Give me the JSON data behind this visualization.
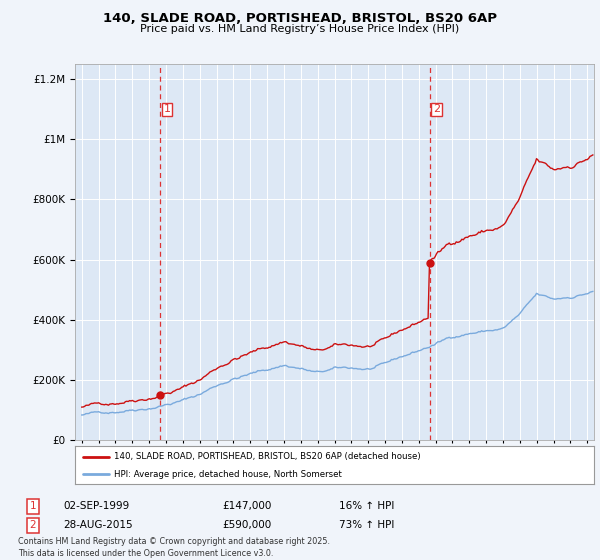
{
  "title_line1": "140, SLADE ROAD, PORTISHEAD, BRISTOL, BS20 6AP",
  "title_line2": "Price paid vs. HM Land Registry’s House Price Index (HPI)",
  "legend_line1": "140, SLADE ROAD, PORTISHEAD, BRISTOL, BS20 6AP (detached house)",
  "legend_line2": "HPI: Average price, detached house, North Somerset",
  "footnote": "Contains HM Land Registry data © Crown copyright and database right 2025.\nThis data is licensed under the Open Government Licence v3.0.",
  "purchase1_label": "1",
  "purchase1_date": "02-SEP-1999",
  "purchase1_price": "£147,000",
  "purchase1_hpi": "16% ↑ HPI",
  "purchase2_label": "2",
  "purchase2_date": "28-AUG-2015",
  "purchase2_price": "£590,000",
  "purchase2_hpi": "73% ↑ HPI",
  "purchase1_year": 1999.67,
  "purchase1_value": 147000,
  "purchase2_year": 2015.65,
  "purchase2_value": 590000,
  "hpi_color": "#7aaadd",
  "price_color": "#cc1111",
  "marker_color": "#cc1111",
  "vline_color": "#dd3333",
  "background_color": "#f0f4fa",
  "plot_bg_color": "#dde8f5",
  "grid_color": "#ffffff",
  "ylim_max": 1250000,
  "xlim_min": 1994.6,
  "xlim_max": 2025.4
}
